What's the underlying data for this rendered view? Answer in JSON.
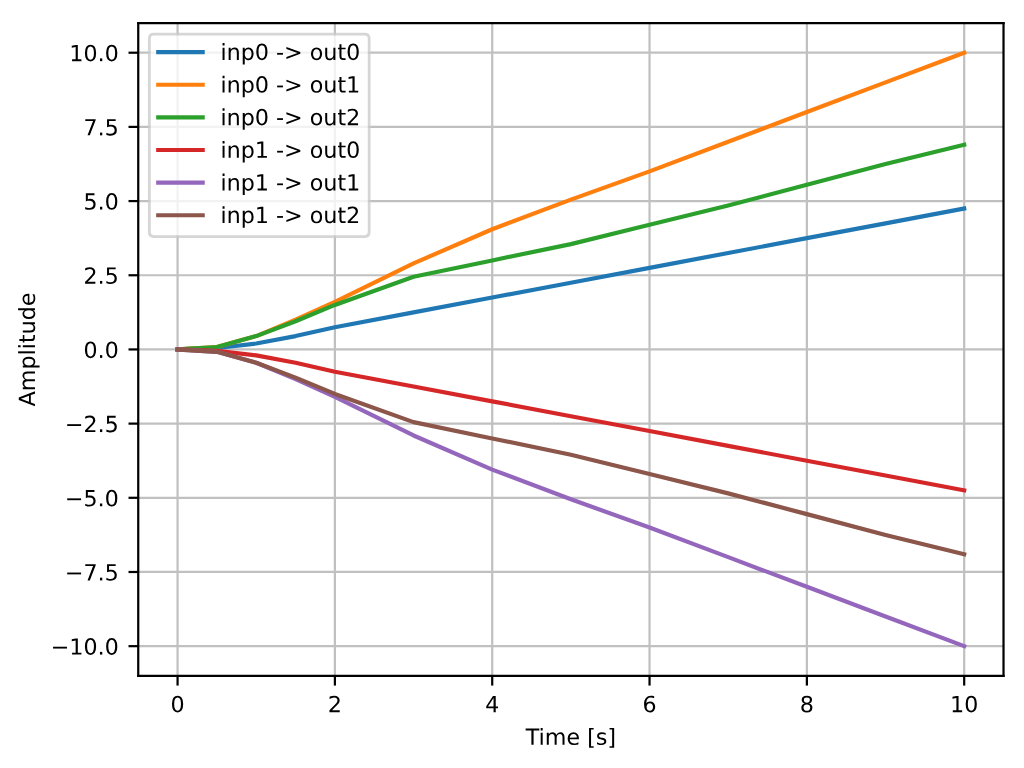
{
  "chart_data": {
    "type": "line",
    "xlabel": "Time [s]",
    "ylabel": "Amplitude",
    "x": [
      0,
      0.5,
      1,
      1.5,
      2,
      3,
      4,
      5,
      6,
      7,
      8,
      9,
      10
    ],
    "series": [
      {
        "name": "inp0 -> out0",
        "color": "#1f77b4",
        "values": [
          0,
          0.05,
          0.2,
          0.45,
          0.75,
          1.25,
          1.75,
          2.25,
          2.75,
          3.25,
          3.75,
          4.25,
          4.75
        ]
      },
      {
        "name": "inp0 -> out1",
        "color": "#ff7f0e",
        "values": [
          0,
          0.08,
          0.45,
          1.0,
          1.6,
          2.9,
          4.05,
          5.05,
          6.0,
          7.0,
          8.0,
          9.0,
          10.0
        ]
      },
      {
        "name": "inp0 -> out2",
        "color": "#2ca02c",
        "values": [
          0,
          0.08,
          0.45,
          0.95,
          1.5,
          2.45,
          3.0,
          3.55,
          4.2,
          4.85,
          5.55,
          6.25,
          6.9
        ]
      },
      {
        "name": "inp1 -> out0",
        "color": "#d62728",
        "values": [
          0,
          -0.05,
          -0.2,
          -0.45,
          -0.75,
          -1.25,
          -1.75,
          -2.25,
          -2.75,
          -3.25,
          -3.75,
          -4.25,
          -4.75
        ]
      },
      {
        "name": "inp1 -> out1",
        "color": "#9467bd",
        "values": [
          0,
          -0.08,
          -0.45,
          -1.0,
          -1.6,
          -2.9,
          -4.05,
          -5.05,
          -6.0,
          -7.0,
          -8.0,
          -9.0,
          -10.0
        ]
      },
      {
        "name": "inp1 -> out2",
        "color": "#8c564b",
        "values": [
          0,
          -0.08,
          -0.45,
          -0.95,
          -1.5,
          -2.45,
          -3.0,
          -3.55,
          -4.2,
          -4.85,
          -5.55,
          -6.25,
          -6.9
        ]
      }
    ],
    "xlim": [
      -0.5,
      10.5
    ],
    "ylim": [
      -11,
      11
    ],
    "xticks": [
      0,
      2,
      4,
      6,
      8,
      10
    ],
    "yticks": [
      {
        "value": -10,
        "label": "−10.0"
      },
      {
        "value": -7.5,
        "label": "−7.5"
      },
      {
        "value": -5,
        "label": "−5.0"
      },
      {
        "value": -2.5,
        "label": "−2.5"
      },
      {
        "value": 0,
        "label": "0.0"
      },
      {
        "value": 2.5,
        "label": "2.5"
      },
      {
        "value": 5,
        "label": "5.0"
      },
      {
        "value": 7.5,
        "label": "7.5"
      },
      {
        "value": 10,
        "label": "10.0"
      }
    ],
    "grid": true,
    "legend": "top left"
  }
}
